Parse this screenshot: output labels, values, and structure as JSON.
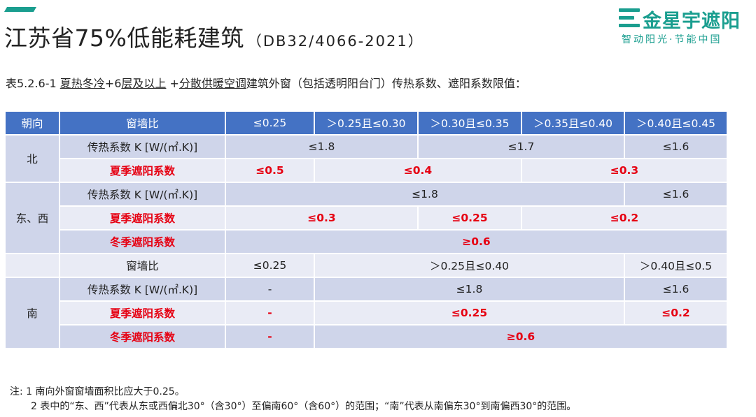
{
  "header": {
    "title_main": "江苏省75%低能耗建筑",
    "title_code": "（DB32/4066-2021）",
    "accent_color": "#1a9e8f"
  },
  "logo": {
    "name": "金星宇遮阳",
    "slogan": "智动阳光·节能中国"
  },
  "caption": {
    "prefix": "表5.2.6-1 ",
    "part1": "夏热冬冷",
    "plus1": "+6",
    "part2": "层及以上",
    "plus2": " +",
    "part3": "分散供暖空调",
    "suffix": "建筑外窗（包括透明阳台门）传热系数、遮阳系数限值："
  },
  "table": {
    "header_color": "#4472c4",
    "headers": [
      "朝向",
      "窗墙比",
      "≤0.25",
      "＞0.25且≤0.30",
      "＞0.30且≤0.35",
      "＞0.35且≤0.40",
      "＞0.40且≤0.45"
    ],
    "north": {
      "label": "北",
      "k_label": "传热系数 K [W/(㎡.K)]",
      "k_values": [
        "≤1.8",
        "≤1.7",
        "≤1.6"
      ],
      "summer_label": "夏季遮阳系数",
      "summer_values": [
        "≤0.5",
        "≤0.4",
        "≤0.3"
      ]
    },
    "east_west": {
      "label": "东、西",
      "k_label": "传热系数 K [W/(㎡.K)]",
      "k_values": [
        "≤1.8",
        "≤1.6"
      ],
      "summer_label": "夏季遮阳系数",
      "summer_values": [
        "≤0.3",
        "≤0.25",
        "≤0.2"
      ],
      "winter_label": "冬季遮阳系数",
      "winter_value": "≥0.6"
    },
    "south_ratio": {
      "label": "窗墙比",
      "values": [
        "≤0.25",
        "＞0.25且≤0.40",
        "＞0.40且≤0.5"
      ]
    },
    "south": {
      "label": "南",
      "k_label": "传热系数 K [W/(㎡.K)]",
      "k_values": [
        "-",
        "≤1.8",
        "≤1.6"
      ],
      "summer_label": "夏季遮阳系数",
      "summer_values": [
        "-",
        "≤0.25",
        "≤0.2"
      ],
      "winter_label": "冬季遮阳系数",
      "winter_values": [
        "-",
        "≥0.6"
      ]
    }
  },
  "notes": {
    "line1": "注: 1 南向外窗窗墙面积比应大于0.25。",
    "line2": "2 表中的“东、西”代表从东或西偏北30°（含30°）至偏南60°（含60°）的范围；“南”代表从南偏东30°到南偏西30°的范围。"
  }
}
